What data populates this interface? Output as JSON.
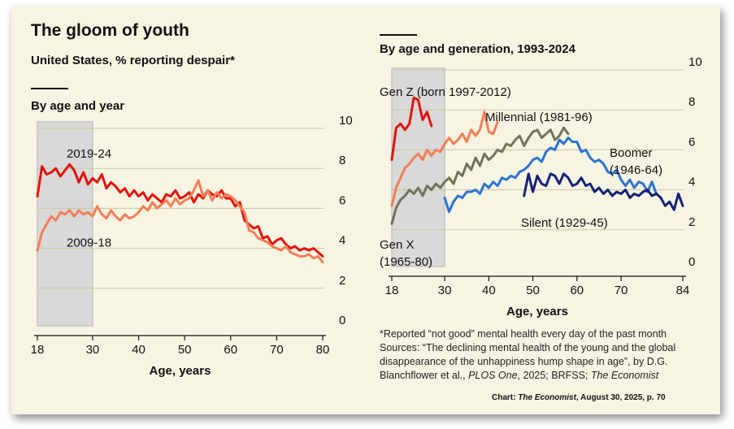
{
  "header": {
    "title": "The gloom of youth",
    "subtitle": "United States, % reporting despair*"
  },
  "left_panel": {
    "heading": "By age and year"
  },
  "right_panel": {
    "heading": "By age and generation, 1993-2024"
  },
  "footnote": {
    "line1": "*Reported “not good” mental health every day of the past month",
    "line2": "Sources: “The declining mental health of the young and the global",
    "line3": "disappearance of the unhappiness hump shape in age”, by D.G.",
    "line4_a": "Blanchflower et al., ",
    "line4_journal": "PLOS One",
    "line4_b": ", 2025; BRFSS; ",
    "line4_pub": "The Economist"
  },
  "credit": {
    "prefix": "Chart: ",
    "pub": "The Economist",
    "suffix": ", August 30, 2025, p. 70"
  },
  "colors": {
    "red": "#e3120b",
    "salmon": "#f47e55",
    "olive": "#6f7458",
    "blue": "#2b73cf",
    "navy": "#14217a",
    "shade": "#d9d9d9",
    "grid": "#c6c8a4"
  },
  "chart_data": [
    {
      "type": "line",
      "title": "By age and year",
      "xlabel": "Age, years",
      "ylabel": "% reporting despair",
      "xlim": [
        18,
        80
      ],
      "ylim": [
        0,
        10
      ],
      "x_ticks": [
        "18",
        "30",
        "40",
        "50",
        "60",
        "70",
        "80"
      ],
      "y_ticks": [
        "0",
        "2",
        "4",
        "6",
        "8",
        "10"
      ],
      "shaded_range": [
        18,
        30
      ],
      "series": [
        {
          "name": "2019-24",
          "color": "#e3120b",
          "x": [
            18,
            19,
            20,
            21,
            22,
            23,
            24,
            25,
            26,
            27,
            28,
            29,
            30,
            31,
            32,
            33,
            34,
            35,
            36,
            37,
            38,
            39,
            40,
            41,
            42,
            43,
            44,
            45,
            46,
            47,
            48,
            49,
            50,
            51,
            52,
            53,
            54,
            55,
            56,
            57,
            58,
            59,
            60,
            61,
            62,
            63,
            64,
            65,
            66,
            67,
            68,
            69,
            70,
            71,
            72,
            73,
            74,
            75,
            76,
            77,
            78,
            79,
            80
          ],
          "values": [
            6.6,
            8.1,
            7.7,
            7.8,
            8.0,
            7.6,
            7.9,
            8.2,
            7.9,
            7.3,
            7.8,
            7.2,
            7.5,
            7.3,
            7.7,
            7.0,
            7.3,
            7.1,
            6.8,
            7.0,
            6.6,
            6.9,
            6.6,
            6.8,
            6.4,
            6.7,
            6.5,
            6.3,
            6.7,
            6.6,
            6.9,
            6.5,
            6.6,
            6.8,
            6.3,
            6.7,
            6.5,
            6.9,
            6.7,
            6.6,
            6.9,
            6.5,
            6.5,
            6.1,
            6.3,
            5.4,
            5.2,
            5.0,
            5.1,
            4.5,
            4.6,
            4.2,
            4.4,
            4.5,
            4.2,
            4.0,
            4.1,
            3.9,
            4.0,
            3.9,
            4.0,
            3.8,
            3.6
          ]
        },
        {
          "name": "2009-18",
          "color": "#f47e55",
          "x": [
            18,
            19,
            20,
            21,
            22,
            23,
            24,
            25,
            26,
            27,
            28,
            29,
            30,
            31,
            32,
            33,
            34,
            35,
            36,
            37,
            38,
            39,
            40,
            41,
            42,
            43,
            44,
            45,
            46,
            47,
            48,
            49,
            50,
            51,
            52,
            53,
            54,
            55,
            56,
            57,
            58,
            59,
            60,
            61,
            62,
            63,
            64,
            65,
            66,
            67,
            68,
            69,
            70,
            71,
            72,
            73,
            74,
            75,
            76,
            77,
            78,
            79,
            80
          ],
          "values": [
            3.9,
            4.8,
            5.2,
            5.6,
            5.4,
            5.8,
            5.7,
            5.9,
            5.6,
            5.9,
            5.7,
            5.8,
            5.6,
            6.1,
            5.7,
            5.5,
            5.9,
            5.6,
            5.4,
            5.7,
            5.5,
            5.6,
            5.8,
            6.1,
            5.9,
            6.3,
            6.0,
            6.2,
            6.4,
            6.1,
            6.5,
            6.2,
            6.4,
            6.5,
            6.9,
            7.4,
            6.6,
            6.9,
            6.4,
            6.8,
            6.5,
            6.7,
            6.6,
            6.4,
            6.1,
            5.8,
            4.9,
            4.8,
            4.5,
            4.4,
            4.3,
            4.1,
            4.0,
            3.9,
            4.1,
            3.8,
            3.7,
            3.6,
            3.6,
            3.7,
            3.5,
            3.6,
            3.3
          ]
        }
      ],
      "annotations": [
        "2019-24",
        "2009-18"
      ]
    },
    {
      "type": "line",
      "title": "By age and generation, 1993-2024",
      "xlabel": "Age, years",
      "ylabel": "% reporting despair",
      "xlim": [
        18,
        84
      ],
      "ylim": [
        0,
        10
      ],
      "x_ticks": [
        "18",
        "30",
        "40",
        "50",
        "60",
        "70",
        "84"
      ],
      "y_ticks": [
        "0",
        "2",
        "4",
        "6",
        "8",
        "10"
      ],
      "shaded_range": [
        18,
        30
      ],
      "series": [
        {
          "name": "Gen Z (born 1997-2012)",
          "color": "#e3120b",
          "x": [
            18,
            19,
            20,
            21,
            22,
            23,
            24,
            25,
            26,
            27
          ],
          "values": [
            5.5,
            7.1,
            7.3,
            7.0,
            7.3,
            8.6,
            8.5,
            7.5,
            7.9,
            7.2
          ]
        },
        {
          "name": "Millennial (1981-96)",
          "color": "#f47e55",
          "x": [
            18,
            19,
            20,
            21,
            22,
            23,
            24,
            25,
            26,
            27,
            28,
            29,
            30,
            31,
            32,
            33,
            34,
            35,
            36,
            37,
            38,
            39,
            40,
            41,
            42
          ],
          "values": [
            3.2,
            4.1,
            4.6,
            5.1,
            5.3,
            5.6,
            5.8,
            5.5,
            6.0,
            5.7,
            6.0,
            5.9,
            6.3,
            6.6,
            6.3,
            6.5,
            6.8,
            6.4,
            7.0,
            6.7,
            7.0,
            7.9,
            6.9,
            6.8,
            7.4
          ]
        },
        {
          "name": "Gen X (1965-80)",
          "color": "#6f7458",
          "x": [
            18,
            19,
            20,
            21,
            22,
            23,
            24,
            25,
            26,
            27,
            28,
            29,
            30,
            31,
            32,
            33,
            34,
            35,
            36,
            37,
            38,
            39,
            40,
            41,
            42,
            43,
            44,
            45,
            46,
            47,
            48,
            49,
            50,
            51,
            52,
            53,
            54,
            55,
            56,
            57,
            58
          ],
          "values": [
            2.3,
            3.1,
            3.5,
            3.7,
            4.0,
            3.8,
            4.1,
            3.7,
            4.2,
            4.0,
            4.3,
            4.1,
            4.4,
            4.6,
            4.3,
            4.9,
            4.7,
            5.3,
            5.0,
            5.6,
            5.2,
            5.8,
            5.5,
            5.7,
            6.0,
            5.9,
            6.3,
            6.2,
            6.5,
            6.7,
            6.2,
            6.6,
            6.9,
            7.0,
            6.6,
            6.8,
            7.0,
            6.5,
            6.7,
            7.1,
            6.8
          ]
        },
        {
          "name": "Boomer (1946-64)",
          "color": "#2b73cf",
          "x": [
            30,
            31,
            32,
            33,
            34,
            35,
            36,
            37,
            38,
            39,
            40,
            41,
            42,
            43,
            44,
            45,
            46,
            47,
            48,
            49,
            50,
            51,
            52,
            53,
            54,
            55,
            56,
            57,
            58,
            59,
            60,
            61,
            62,
            63,
            64,
            65,
            66,
            67,
            68,
            69,
            70,
            71,
            72,
            73,
            74,
            75,
            76,
            77,
            78
          ],
          "values": [
            3.6,
            2.9,
            3.4,
            3.7,
            3.6,
            3.9,
            3.9,
            4.0,
            3.8,
            4.3,
            4.1,
            4.4,
            4.2,
            4.6,
            4.5,
            4.7,
            4.6,
            4.9,
            5.0,
            5.2,
            5.5,
            5.6,
            5.4,
            5.9,
            6.1,
            6.0,
            6.5,
            6.3,
            6.6,
            6.4,
            6.4,
            5.9,
            6.0,
            5.6,
            5.4,
            5.5,
            5.3,
            4.9,
            4.8,
            5.0,
            4.5,
            4.2,
            4.5,
            4.1,
            4.4,
            4.3,
            3.9,
            4.4,
            3.8
          ]
        },
        {
          "name": "Silent (1929-45)",
          "color": "#14217a",
          "x": [
            48,
            49,
            50,
            51,
            52,
            53,
            54,
            55,
            56,
            57,
            58,
            59,
            60,
            61,
            62,
            63,
            64,
            65,
            66,
            67,
            68,
            69,
            70,
            71,
            72,
            73,
            74,
            75,
            76,
            77,
            78,
            79,
            80,
            81,
            82,
            83,
            84
          ],
          "values": [
            3.7,
            4.8,
            3.9,
            4.7,
            4.3,
            4.2,
            4.8,
            4.7,
            4.3,
            4.8,
            4.6,
            4.2,
            4.3,
            4.6,
            4.2,
            4.3,
            3.9,
            4.1,
            3.8,
            4.0,
            3.7,
            3.9,
            3.8,
            4.0,
            3.6,
            3.8,
            3.7,
            3.9,
            4.0,
            3.7,
            3.8,
            3.6,
            3.2,
            3.4,
            3.0,
            3.8,
            3.2
          ]
        }
      ],
      "annotations": [
        "Gen Z (born 1997-2012)",
        "Millennial (1981-96)",
        "Boomer",
        "(1946-64)",
        "Silent (1929-45)",
        "Gen X",
        "(1965-80)"
      ]
    }
  ]
}
